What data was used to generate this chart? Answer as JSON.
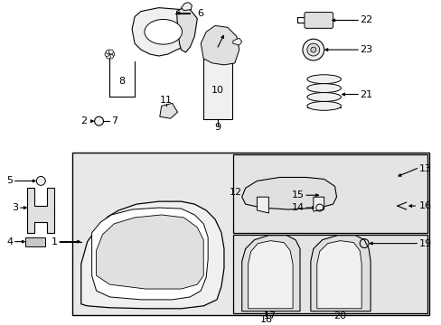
{
  "bg_color": "#ffffff",
  "fig_width": 4.89,
  "fig_height": 3.6,
  "dpi": 100,
  "line_color": "#000000",
  "text_color": "#000000",
  "fill_light": "#f0f0f0",
  "fill_mid": "#e0e0e0",
  "fill_dark": "#c8c8c8",
  "box_fill": "#e8e8e8",
  "subbox_fill": "#e4e4e4"
}
